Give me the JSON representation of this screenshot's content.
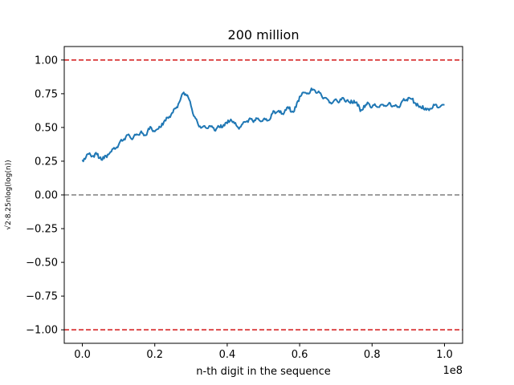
{
  "chart_data": {
    "type": "line",
    "title": "200 million",
    "xlabel": "n-th digit in the sequence",
    "ylabel": "√2·8.25nlog(log(n))",
    "x_offset_text": "1e8",
    "xlim": [
      -5000000,
      105000000
    ],
    "ylim": [
      -1.1,
      1.1
    ],
    "x_ticks": [
      0,
      20000000,
      40000000,
      60000000,
      80000000,
      100000000
    ],
    "x_tick_labels": [
      "0.0",
      "0.2",
      "0.4",
      "0.6",
      "0.8",
      "1.0"
    ],
    "y_ticks": [
      1.0,
      0.75,
      0.5,
      0.25,
      0.0,
      -0.25,
      -0.5,
      -0.75,
      -1.0
    ],
    "y_tick_labels": [
      "1.00",
      "0.75",
      "0.50",
      "0.25",
      "0.00",
      "−0.25",
      "−0.50",
      "−0.75",
      "−1.00"
    ],
    "reference_lines": [
      {
        "y": 1.0,
        "color": "#d62728",
        "style": "dashed"
      },
      {
        "y": 0.0,
        "color": "#7f7f7f",
        "style": "dashed"
      },
      {
        "y": -1.0,
        "color": "#d62728",
        "style": "dashed"
      }
    ],
    "series": [
      {
        "color": "#1f77b4",
        "x": [
          0,
          1000000,
          2000000,
          3000000,
          4000000,
          5000000,
          6000000,
          7000000,
          8000000,
          9000000,
          10000000,
          11000000,
          12000000,
          13000000,
          14000000,
          15000000,
          16000000,
          17000000,
          18000000,
          19000000,
          20000000,
          21000000,
          22000000,
          23000000,
          24000000,
          25000000,
          26000000,
          27000000,
          28000000,
          29000000,
          30000000,
          31000000,
          32000000,
          33000000,
          34000000,
          35000000,
          36000000,
          37000000,
          38000000,
          39000000,
          40000000,
          41000000,
          42000000,
          43000000,
          44000000,
          45000000,
          46000000,
          47000000,
          48000000,
          49000000,
          50000000,
          51000000,
          52000000,
          53000000,
          54000000,
          55000000,
          56000000,
          57000000,
          58000000,
          59000000,
          60000000,
          61000000,
          62000000,
          63000000,
          64000000,
          65000000,
          66000000,
          67000000,
          68000000,
          69000000,
          70000000,
          71000000,
          72000000,
          73000000,
          74000000,
          75000000,
          76000000,
          77000000,
          78000000,
          79000000,
          80000000,
          81000000,
          82000000,
          83000000,
          84000000,
          85000000,
          86000000,
          87000000,
          88000000,
          89000000,
          90000000,
          91000000,
          92000000,
          93000000,
          94000000,
          95000000,
          96000000,
          97000000,
          98000000,
          99000000,
          100000000
        ],
        "y": [
          0.26,
          0.28,
          0.31,
          0.29,
          0.3,
          0.28,
          0.27,
          0.3,
          0.32,
          0.34,
          0.37,
          0.4,
          0.43,
          0.44,
          0.42,
          0.45,
          0.46,
          0.44,
          0.47,
          0.5,
          0.47,
          0.49,
          0.53,
          0.55,
          0.58,
          0.61,
          0.65,
          0.7,
          0.76,
          0.74,
          0.66,
          0.58,
          0.52,
          0.5,
          0.5,
          0.51,
          0.5,
          0.49,
          0.5,
          0.52,
          0.53,
          0.56,
          0.53,
          0.5,
          0.52,
          0.54,
          0.56,
          0.55,
          0.57,
          0.55,
          0.56,
          0.55,
          0.57,
          0.62,
          0.62,
          0.6,
          0.63,
          0.64,
          0.62,
          0.65,
          0.73,
          0.76,
          0.75,
          0.77,
          0.78,
          0.76,
          0.74,
          0.72,
          0.7,
          0.68,
          0.71,
          0.69,
          0.72,
          0.7,
          0.68,
          0.7,
          0.66,
          0.63,
          0.65,
          0.68,
          0.65,
          0.66,
          0.65,
          0.67,
          0.66,
          0.68,
          0.66,
          0.65,
          0.68,
          0.7,
          0.72,
          0.71,
          0.68,
          0.65,
          0.66,
          0.63,
          0.64,
          0.67,
          0.65,
          0.66,
          0.67
        ]
      }
    ]
  }
}
